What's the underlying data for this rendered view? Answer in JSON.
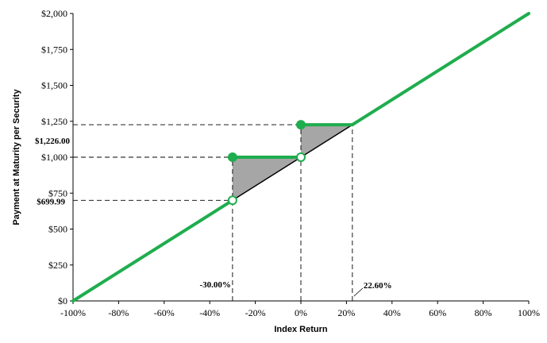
{
  "chart_data": {
    "type": "line",
    "xlabel": "Index Return",
    "ylabel": "Payment at Maturity per Security",
    "xlim": [
      -100,
      100
    ],
    "ylim": [
      0,
      2000
    ],
    "x_ticks": [
      "-100%",
      "-80%",
      "-60%",
      "-40%",
      "-20%",
      "0%",
      "20%",
      "40%",
      "60%",
      "80%",
      "100%"
    ],
    "y_ticks": [
      "$0",
      "$250",
      "$500",
      "$750",
      "$1,000",
      "$1,250",
      "$1,500",
      "$1,750",
      "$2,000"
    ],
    "grid": false,
    "legend": "none",
    "series": [
      {
        "values": [
          {
            "segment": [
              [
                -100,
                0
              ],
              [
                -30,
                700
              ]
            ]
          },
          {
            "segment": [
              [
                -30,
                1000
              ],
              [
                0,
                1000
              ]
            ]
          },
          {
            "segment": [
              [
                0,
                1226
              ],
              [
                22.6,
                1226
              ]
            ]
          },
          {
            "segment": [
              [
                22.6,
                1226
              ],
              [
                100,
                2000
              ]
            ]
          }
        ]
      }
    ],
    "reference_line": [
      [
        -30,
        700
      ],
      [
        22.6,
        1226
      ]
    ],
    "shaded_regions": [
      [
        [
          -30,
          700
        ],
        [
          -30,
          1000
        ],
        [
          0,
          1000
        ]
      ],
      [
        [
          0,
          1000
        ],
        [
          0,
          1226
        ],
        [
          22.6,
          1226
        ]
      ]
    ],
    "points": [
      {
        "x": -30,
        "y": 1000,
        "filled": true
      },
      {
        "x": -30,
        "y": 699.99,
        "filled": false
      },
      {
        "x": 0,
        "y": 1226,
        "filled": true
      },
      {
        "x": 0,
        "y": 1000,
        "filled": false
      }
    ],
    "annotations": [
      {
        "id": "y-1226",
        "text": "$1,226.00",
        "y": 1226
      },
      {
        "id": "y-69999",
        "text": "$699.99",
        "y": 699.99
      },
      {
        "id": "x-m30",
        "text": "-30.00%",
        "x": -30
      },
      {
        "id": "x-226",
        "text": "22.60%",
        "x": 22.6
      }
    ],
    "dashed_guides": [
      {
        "y": 1226,
        "x_to": 22.6
      },
      {
        "y": 1000,
        "x_to": 0
      },
      {
        "y": 699.99,
        "x_to": -30
      },
      {
        "x": -30,
        "y_to": 1000
      },
      {
        "x": 0,
        "y_to": 1226
      },
      {
        "x": 22.6,
        "y_to": 1226
      }
    ],
    "colors": {
      "line": "#1fad4e",
      "reference": "#000000",
      "shade": "#a6a6a6",
      "guide": "#000000"
    }
  }
}
